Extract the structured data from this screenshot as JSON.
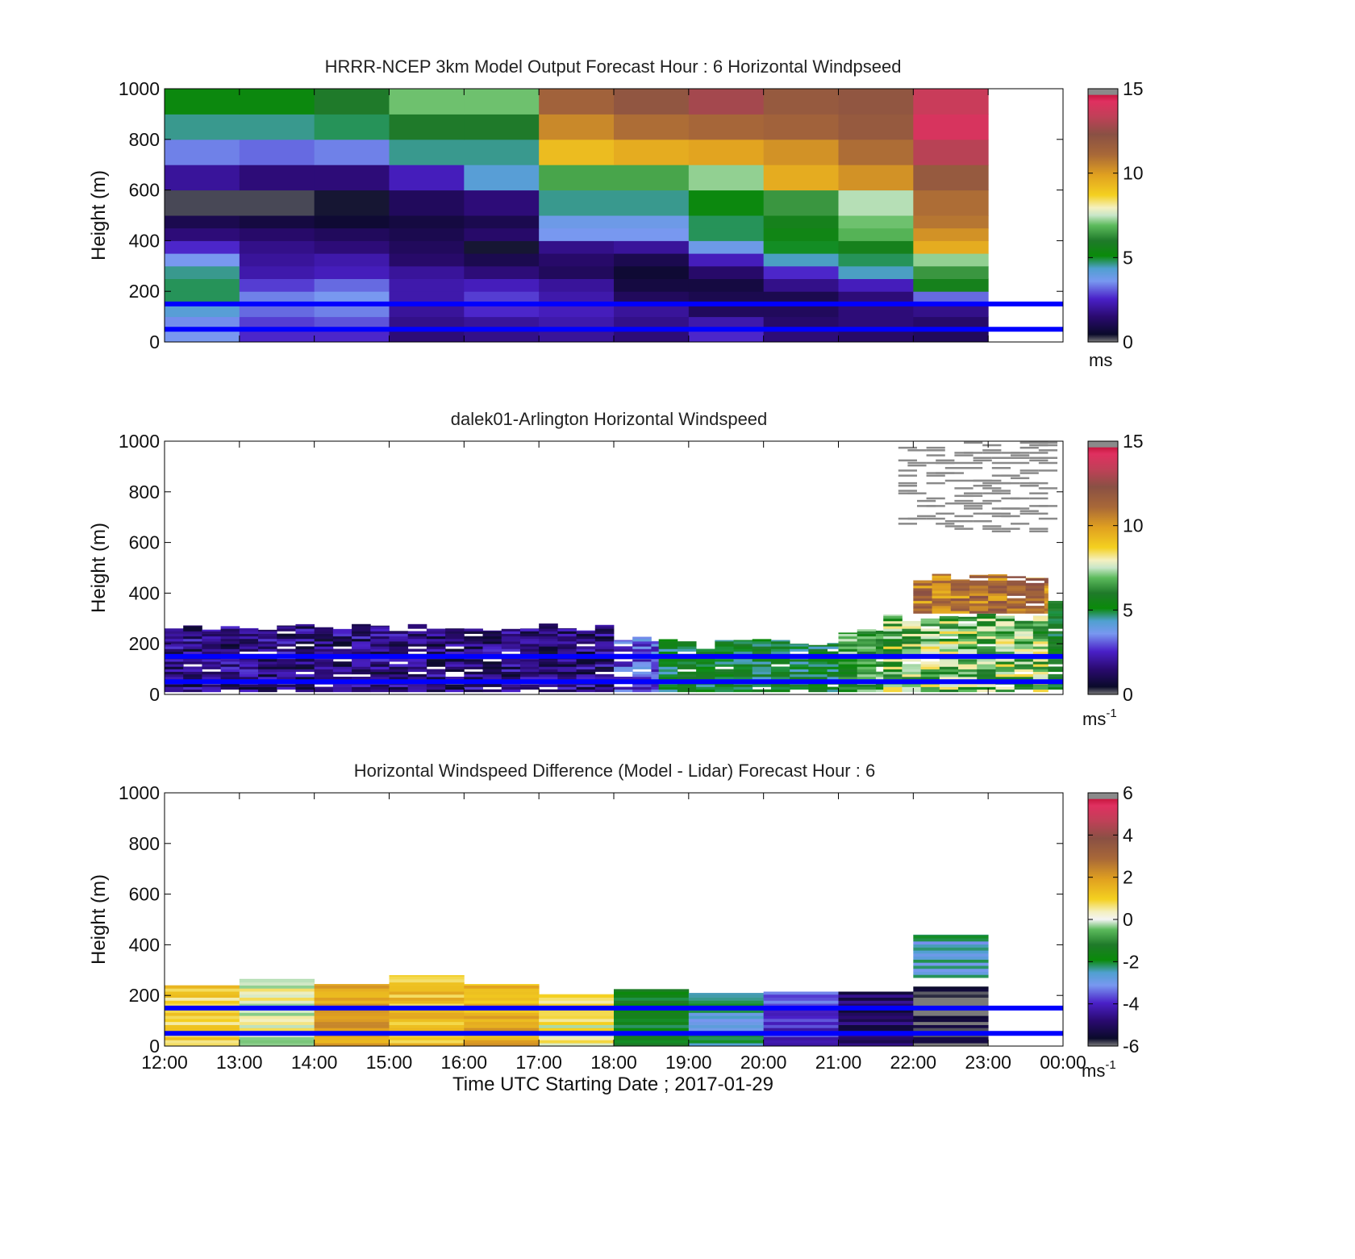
{
  "figure": {
    "xlabel": "Time UTC  Starting Date ; 2017-01-29"
  },
  "chart_data": [
    {
      "type": "heatmap",
      "title": "HRRR-NCEP 3km Model Output   Forecast Hour : 6 Horizontal Windpseed",
      "ylabel": "Height (m)",
      "ylim": [
        0,
        1000
      ],
      "yticks": [
        "0",
        "200",
        "400",
        "600",
        "800",
        "1000"
      ],
      "x_ticks": [
        "12:00",
        "13:00",
        "14:00",
        "15:00",
        "16:00",
        "17:00",
        "18:00",
        "19:00",
        "20:00",
        "21:00",
        "22:00",
        "23:00",
        "00:00"
      ],
      "x_tick_labels_shown": false,
      "colorbar": {
        "min": 0,
        "max": 15,
        "ticks": [
          "0",
          "5",
          "10",
          "15"
        ],
        "unit": "ms",
        "unit_sup": ""
      },
      "reference_heights_m": [
        150,
        50
      ],
      "reference_line_color": "#0000ff",
      "time_bins_hour": [
        12,
        13,
        14,
        15,
        16,
        17,
        18,
        19,
        20,
        21,
        22
      ],
      "height_edges_m": [
        0,
        50,
        100,
        150,
        200,
        250,
        300,
        350,
        400,
        450,
        500,
        600,
        700,
        800,
        900,
        1000
      ],
      "values_ms": [
        [
          3.6,
          2.6,
          2.6,
          1.6,
          1.8,
          2.0,
          1.6,
          2.6,
          1.6,
          1.4,
          1.2
        ],
        [
          3.5,
          2.8,
          3.0,
          1.8,
          2.0,
          2.2,
          1.8,
          2.2,
          1.4,
          1.6,
          1.4
        ],
        [
          4.2,
          3.2,
          3.4,
          2.0,
          2.6,
          2.4,
          2.0,
          1.2,
          1.2,
          1.6,
          1.8
        ],
        [
          4.8,
          3.4,
          3.6,
          2.2,
          2.8,
          2.2,
          1.2,
          1.0,
          1.0,
          1.6,
          3.2
        ],
        [
          4.8,
          2.8,
          3.2,
          2.2,
          2.4,
          2.0,
          0.8,
          0.8,
          1.8,
          2.4,
          5.6
        ],
        [
          4.6,
          2.2,
          2.4,
          2.0,
          1.6,
          1.2,
          0.6,
          1.4,
          2.6,
          4.4,
          6.4
        ],
        [
          3.6,
          2.0,
          2.2,
          1.4,
          1.0,
          1.4,
          1.0,
          2.4,
          4.4,
          4.8,
          7.2
        ],
        [
          2.6,
          1.8,
          1.6,
          1.2,
          0.4,
          1.8,
          2.0,
          3.8,
          5.0,
          5.6,
          9.6
        ],
        [
          1.6,
          1.4,
          1.2,
          1.0,
          1.4,
          3.6,
          3.6,
          4.8,
          5.4,
          6.8,
          10.2
        ],
        [
          1.0,
          0.8,
          0.6,
          0.8,
          1.0,
          3.8,
          3.8,
          4.8,
          5.6,
          7.0,
          10.8
        ],
        [
          0.2,
          0.2,
          0.4,
          1.2,
          1.6,
          4.6,
          4.6,
          5.2,
          6.4,
          7.4,
          11.0
        ],
        [
          2.0,
          1.6,
          1.6,
          2.4,
          4.2,
          6.6,
          6.6,
          7.2,
          9.6,
          10.2,
          11.8
        ],
        [
          3.4,
          3.2,
          3.4,
          4.6,
          4.6,
          9.2,
          9.6,
          9.8,
          10.2,
          11.0,
          13.2
        ],
        [
          4.6,
          4.6,
          4.8,
          6.0,
          6.0,
          10.4,
          11.0,
          11.2,
          11.4,
          11.8,
          14.0
        ],
        [
          5.2,
          5.2,
          6.0,
          7.0,
          7.0,
          11.4,
          12.0,
          12.8,
          11.8,
          12.0,
          13.6
        ]
      ]
    },
    {
      "type": "heatmap",
      "title": "dalek01-Arlington  Horizontal Windspeed",
      "ylabel": "Height (m)",
      "ylim": [
        0,
        1000
      ],
      "yticks": [
        "0",
        "200",
        "400",
        "600",
        "800",
        "1000"
      ],
      "x_ticks": [
        "12:00",
        "13:00",
        "14:00",
        "15:00",
        "16:00",
        "17:00",
        "18:00",
        "19:00",
        "20:00",
        "21:00",
        "22:00",
        "23:00",
        "00:00"
      ],
      "x_tick_labels_shown": false,
      "colorbar": {
        "min": 0,
        "max": 15,
        "ticks": [
          "0",
          "5",
          "10",
          "15"
        ],
        "unit": "ms",
        "unit_sup": "-1"
      },
      "reference_heights_m": [
        150,
        50
      ],
      "reference_line_color": "#0000ff",
      "layers": [
        {
          "from_hour": 12,
          "to_hour": 18,
          "bottom_m": 10,
          "top_m": 280,
          "speed_ms": 1.6,
          "jitter": 1.2
        },
        {
          "from_hour": 18,
          "to_hour": 18.6,
          "bottom_m": 10,
          "top_m": 240,
          "speed_ms": 3.0,
          "jitter": 1.0
        },
        {
          "from_hour": 18.6,
          "to_hour": 21.0,
          "bottom_m": 10,
          "top_m": 220,
          "speed_ms": 5.2,
          "jitter": 0.9
        },
        {
          "from_hour": 21.0,
          "to_hour": 21.6,
          "bottom_m": 10,
          "top_m": 260,
          "speed_ms": 6.4,
          "jitter": 1.2
        },
        {
          "from_hour": 21.6,
          "to_hour": 23.8,
          "bottom_m": 10,
          "top_m": 320,
          "speed_ms": 7.0,
          "jitter": 1.6
        },
        {
          "from_hour": 22.0,
          "to_hour": 23.8,
          "bottom_m": 320,
          "top_m": 480,
          "speed_ms": 10.8,
          "jitter": 1.6
        },
        {
          "from_hour": 23.8,
          "to_hour": 24.0,
          "bottom_m": 10,
          "top_m": 380,
          "speed_ms": 5.4,
          "jitter": 0.8
        }
      ],
      "sparse_high_returns": {
        "from_hour": 21.8,
        "to_hour": 23.8,
        "bottom_m": 640,
        "top_m": 1000,
        "speed_ms": 16
      }
    },
    {
      "type": "heatmap",
      "title": "Horizontal Windspeed Difference (Model - Lidar) Forecast Hour : 6",
      "ylabel": "Height (m)",
      "ylim": [
        0,
        1000
      ],
      "yticks": [
        "0",
        "200",
        "400",
        "600",
        "800",
        "1000"
      ],
      "x_ticks": [
        "12:00",
        "13:00",
        "14:00",
        "15:00",
        "16:00",
        "17:00",
        "18:00",
        "19:00",
        "20:00",
        "21:00",
        "22:00",
        "23:00",
        "00:00"
      ],
      "x_tick_labels_shown": true,
      "colorbar": {
        "min": -6,
        "max": 6,
        "ticks": [
          "-6",
          "-4",
          "-2",
          "0",
          "2",
          "4",
          "6"
        ],
        "unit": "ms",
        "unit_sup": "-1"
      },
      "reference_heights_m": [
        150,
        50
      ],
      "reference_line_color": "#0000ff",
      "columns": [
        {
          "from_hour": 12,
          "to_hour": 13,
          "top_m": 240,
          "diff_ms": 1.0
        },
        {
          "from_hour": 13,
          "to_hour": 14,
          "top_m": 265,
          "diff_ms": 0.2
        },
        {
          "from_hour": 14,
          "to_hour": 15,
          "top_m": 245,
          "diff_ms": 1.8
        },
        {
          "from_hour": 15,
          "to_hour": 16,
          "top_m": 280,
          "diff_ms": 1.2
        },
        {
          "from_hour": 16,
          "to_hour": 17,
          "top_m": 245,
          "diff_ms": 1.6
        },
        {
          "from_hour": 17,
          "to_hour": 18,
          "top_m": 205,
          "diff_ms": 0.4
        },
        {
          "from_hour": 18,
          "to_hour": 19,
          "top_m": 225,
          "diff_ms": -1.6
        },
        {
          "from_hour": 19,
          "to_hour": 20,
          "top_m": 210,
          "diff_ms": -2.6
        },
        {
          "from_hour": 20,
          "to_hour": 21,
          "top_m": 215,
          "diff_ms": -3.8
        },
        {
          "from_hour": 21,
          "to_hour": 22,
          "top_m": 215,
          "diff_ms": -5.0
        },
        {
          "from_hour": 22,
          "to_hour": 23,
          "top_m": 235,
          "diff_ms": -5.8
        },
        {
          "from_hour": 22,
          "to_hour": 23,
          "bottom_m": 270,
          "top_m": 440,
          "diff_ms": -2.6
        }
      ]
    }
  ]
}
